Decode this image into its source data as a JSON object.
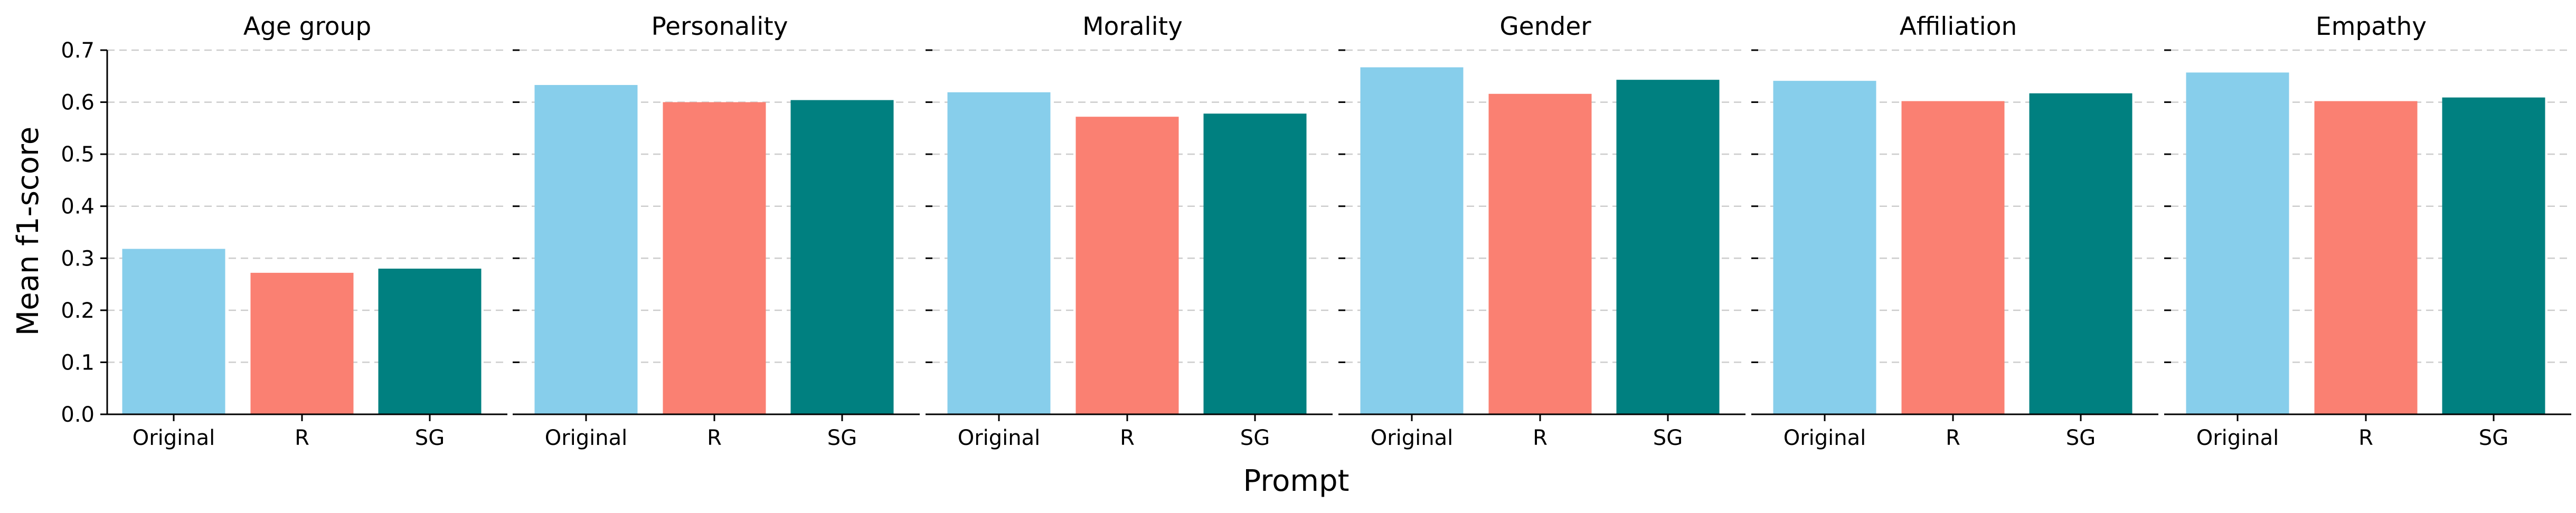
{
  "chart_data": {
    "type": "bar",
    "ylabel": "Mean f1-score",
    "xlabel": "Prompt",
    "ylim": [
      0,
      0.7
    ],
    "yticks": [
      "0.0",
      "0.1",
      "0.2",
      "0.3",
      "0.4",
      "0.5",
      "0.6",
      "0.7"
    ],
    "categories": [
      "Original",
      "R",
      "SG"
    ],
    "colors": [
      "#87CEEB",
      "#FA8072",
      "#008080"
    ],
    "grid": "horizontal dashed",
    "panels": [
      {
        "title": "Age group",
        "values": [
          0.318,
          0.272,
          0.28
        ]
      },
      {
        "title": "Personality",
        "values": [
          0.633,
          0.6,
          0.604
        ]
      },
      {
        "title": "Morality",
        "values": [
          0.619,
          0.572,
          0.578
        ]
      },
      {
        "title": "Gender",
        "values": [
          0.667,
          0.616,
          0.643
        ]
      },
      {
        "title": "Affiliation",
        "values": [
          0.641,
          0.602,
          0.617
        ]
      },
      {
        "title": "Empathy",
        "values": [
          0.657,
          0.602,
          0.609
        ]
      }
    ]
  }
}
